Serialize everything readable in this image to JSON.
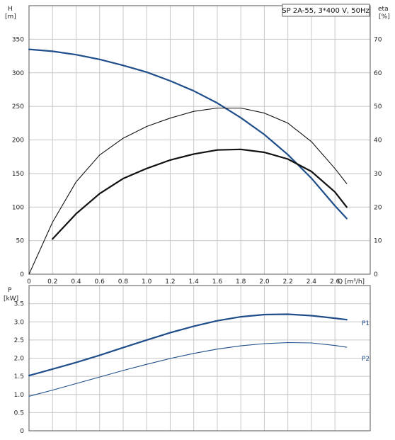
{
  "chart_data": [
    {
      "type": "line",
      "title": "SP 2A-55, 3*400 V, 50Hz",
      "xlabel": "Q [m³/h]",
      "ylabel_left": "H",
      "ylabel_left_unit": "[m]",
      "ylabel_right": "eta",
      "ylabel_right_unit": "[%]",
      "xlim": [
        0,
        2.9
      ],
      "ylim_left": [
        0,
        400
      ],
      "ylim_right": [
        0,
        80
      ],
      "x_ticks": [
        "0",
        "0.2",
        "0.4",
        "0.6",
        "0.8",
        "1.0",
        "1.2",
        "1.4",
        "1.6",
        "1.8",
        "2.0",
        "2.2",
        "2.4",
        "2.6"
      ],
      "y_left_ticks": [
        "0",
        "50",
        "100",
        "150",
        "200",
        "250",
        "300",
        "350"
      ],
      "y_right_ticks": [
        "0",
        "10",
        "20",
        "30",
        "40",
        "50",
        "60",
        "70"
      ],
      "grid": true,
      "series": [
        {
          "axis": "left",
          "color": "#1f4e8a",
          "x": [
            0,
            0.2,
            0.4,
            0.6,
            0.8,
            1.0,
            1.2,
            1.4,
            1.6,
            1.8,
            2.0,
            2.2,
            2.4,
            2.6,
            2.7
          ],
          "values": [
            335,
            332,
            327,
            320,
            311,
            301,
            288,
            273,
            255,
            233,
            208,
            178,
            143,
            102,
            83
          ]
        },
        {
          "axis": "right",
          "color": "#111111",
          "x": [
            0,
            0.2,
            0.4,
            0.6,
            0.8,
            1.0,
            1.2,
            1.4,
            1.6,
            1.8,
            2.0,
            2.2,
            2.4,
            2.6,
            2.7
          ],
          "values": [
            0,
            15.5,
            27.5,
            35.5,
            40.5,
            44,
            46.5,
            48.5,
            49.5,
            49.5,
            48,
            45,
            39.5,
            31.5,
            27
          ]
        },
        {
          "axis": "right",
          "color": "#111111",
          "x": [
            0.2,
            0.4,
            0.6,
            0.8,
            1.0,
            1.2,
            1.4,
            1.6,
            1.8,
            2.0,
            2.2,
            2.4,
            2.6,
            2.7
          ],
          "values": [
            10.5,
            18,
            24,
            28.5,
            31.5,
            34,
            35.8,
            37,
            37.2,
            36.3,
            34.3,
            30.6,
            24.5,
            20
          ]
        }
      ]
    },
    {
      "type": "line",
      "ylabel": "P",
      "ylabel_unit": "[kW]",
      "xlim": [
        0,
        2.9
      ],
      "ylim": [
        0,
        4.0
      ],
      "y_ticks": [
        "0",
        "0.5",
        "1.0",
        "1.5",
        "2.0",
        "2.5",
        "3.0",
        "3.5"
      ],
      "grid": true,
      "series": [
        {
          "name": "P1",
          "color": "#1f4e8a",
          "x": [
            0,
            0.2,
            0.4,
            0.6,
            0.8,
            1.0,
            1.2,
            1.4,
            1.6,
            1.8,
            2.0,
            2.2,
            2.4,
            2.6,
            2.7
          ],
          "values": [
            1.52,
            1.7,
            1.88,
            2.08,
            2.29,
            2.5,
            2.7,
            2.88,
            3.03,
            3.14,
            3.2,
            3.21,
            3.17,
            3.1,
            3.06
          ]
        },
        {
          "name": "P2",
          "color": "#1f4e8a",
          "x": [
            0,
            0.2,
            0.4,
            0.6,
            0.8,
            1.0,
            1.2,
            1.4,
            1.6,
            1.8,
            2.0,
            2.2,
            2.4,
            2.6,
            2.7
          ],
          "values": [
            0.95,
            1.12,
            1.3,
            1.48,
            1.66,
            1.83,
            1.99,
            2.13,
            2.25,
            2.34,
            2.4,
            2.43,
            2.42,
            2.35,
            2.3
          ]
        }
      ]
    }
  ]
}
